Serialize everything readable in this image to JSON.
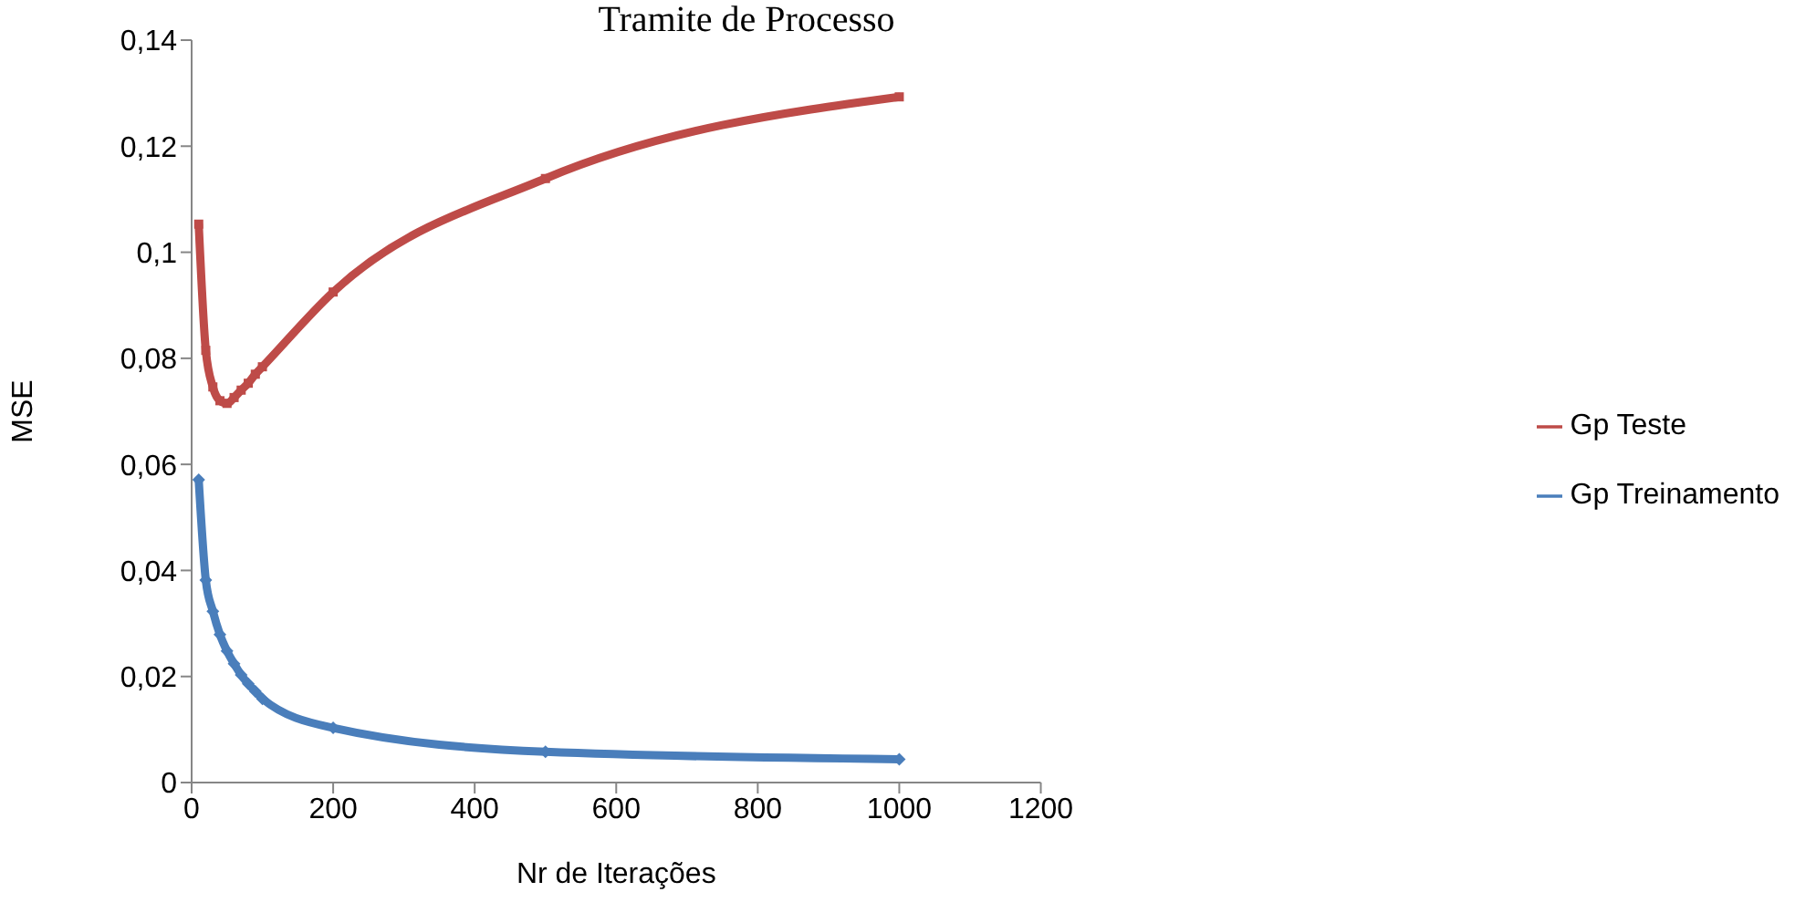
{
  "chart_data": {
    "type": "line",
    "title": "Tramite de Processo",
    "xlabel": "Nr de Iterações",
    "ylabel": "MSE",
    "x": [
      10,
      20,
      30,
      40,
      50,
      60,
      70,
      80,
      90,
      100,
      200,
      500,
      1000
    ],
    "series": [
      {
        "name": "Gp Treinamento",
        "color": "#4a7ebb",
        "marker": "diamond",
        "values": [
          0.0571,
          0.0382,
          0.0323,
          0.0279,
          0.0248,
          0.0224,
          0.0203,
          0.0186,
          0.0172,
          0.0158,
          0.0103,
          0.0058,
          0.0044
        ]
      },
      {
        "name": "Gp Teste",
        "color": "#be4b48",
        "marker": "square",
        "values": [
          0.1053,
          0.0815,
          0.0746,
          0.072,
          0.0715,
          0.0726,
          0.074,
          0.0753,
          0.077,
          0.0784,
          0.0925,
          0.1139,
          0.1293
        ]
      }
    ],
    "xlim": [
      0,
      1200
    ],
    "xticks": [
      0,
      200,
      400,
      600,
      800,
      1000,
      1200
    ],
    "ylim": [
      0,
      0.14
    ],
    "yticks": [
      {
        "value": 0,
        "label": "0"
      },
      {
        "value": 0.02,
        "label": "0,02"
      },
      {
        "value": 0.04,
        "label": "0,04"
      },
      {
        "value": 0.06,
        "label": "0,06"
      },
      {
        "value": 0.08,
        "label": "0,08"
      },
      {
        "value": 0.1,
        "label": "0,1"
      },
      {
        "value": 0.12,
        "label": "0,12"
      },
      {
        "value": 0.14,
        "label": "0,14"
      }
    ],
    "grid": false,
    "legend": "right",
    "line_style": "solid"
  }
}
